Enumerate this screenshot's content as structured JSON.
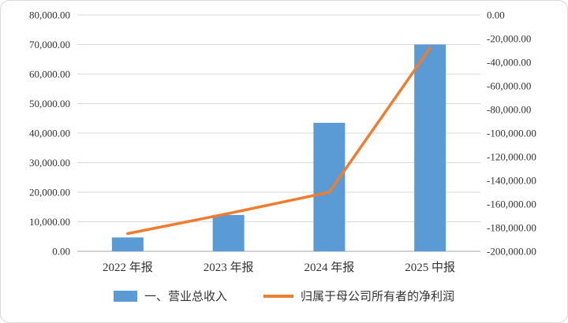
{
  "chart_data": {
    "type": "combo",
    "categories": [
      "2022 年报",
      "2023 年报",
      "2024 年报",
      "2025 中报"
    ],
    "series": [
      {
        "name": "一、营业总收入",
        "chart_type": "bar",
        "axis": "left",
        "color": "#5B9BD5",
        "values": [
          4700,
          12300,
          43500,
          70000
        ]
      },
      {
        "name": "归属于母公司所有者的净利润",
        "chart_type": "line",
        "axis": "right",
        "color": "#ED7D31",
        "values": [
          -185000,
          -168000,
          -150000,
          -28000
        ]
      }
    ],
    "left_axis": {
      "min": 0,
      "max": 80000,
      "step": 10000,
      "tick_labels_top_down": [
        "80,000.00",
        "70,000.00",
        "60,000.00",
        "50,000.00",
        "40,000.00",
        "30,000.00",
        "20,000.00",
        "10,000.00",
        "0.00"
      ]
    },
    "right_axis": {
      "min": -200000,
      "max": 0,
      "step": 20000,
      "tick_labels_top_down": [
        "0.00",
        "-20,000.00",
        "-40,000.00",
        "-60,000.00",
        "-80,000.00",
        "-100,000.00",
        "-120,000.00",
        "-140,000.00",
        "-160,000.00",
        "-180,000.00",
        "-200,000.00"
      ]
    },
    "grid": true,
    "grid_color": "#d9d9d9",
    "axis_line_color": "#a6a6a6",
    "legend_position": "bottom"
  }
}
